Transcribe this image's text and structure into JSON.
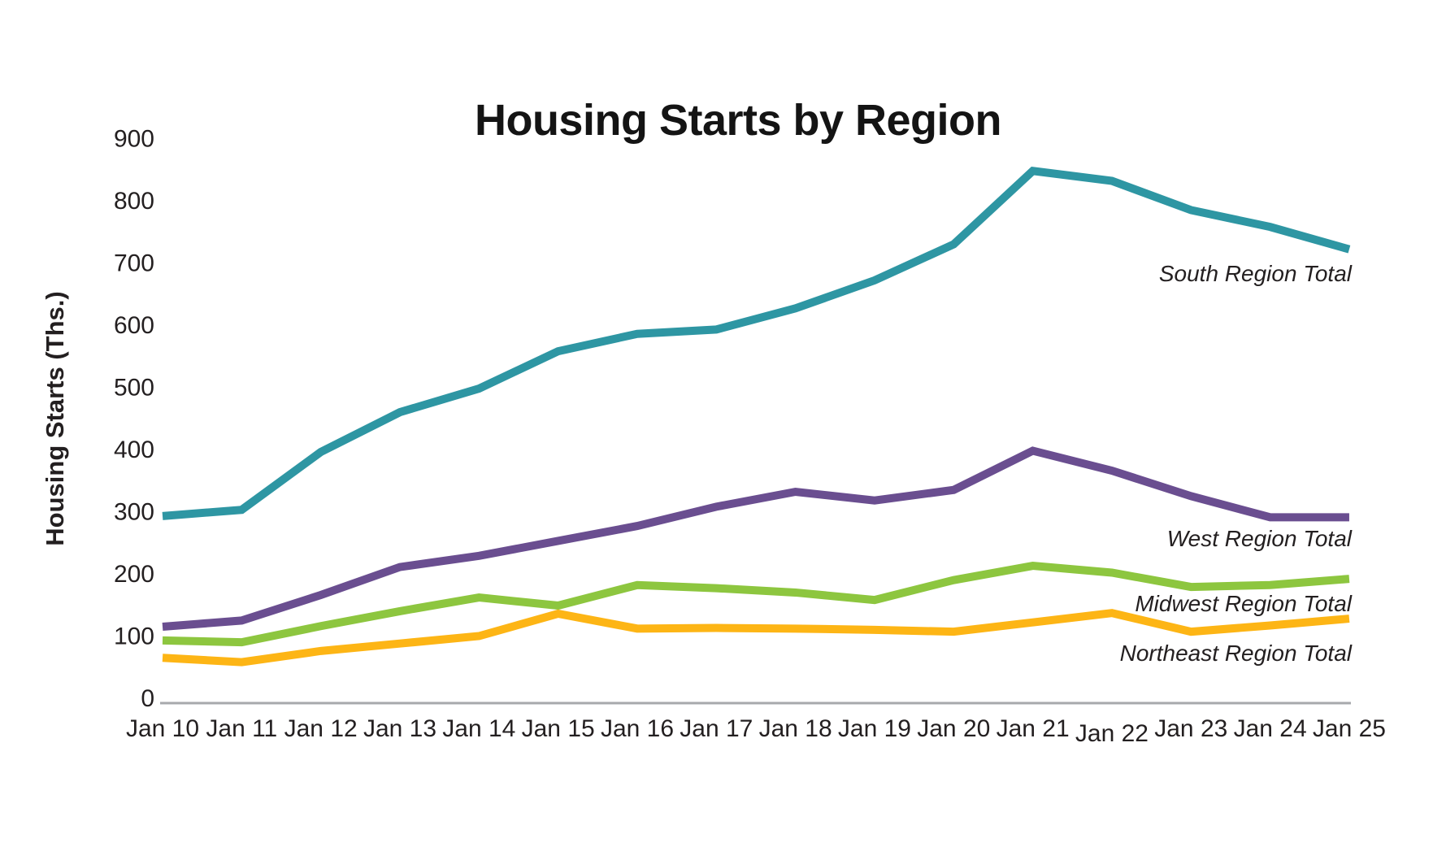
{
  "page": {
    "background": "#ffffff"
  },
  "chart_data": {
    "type": "line",
    "title": "Housing Starts by Region",
    "ylabel": "Housing Starts (Ths.)",
    "xlabel": "",
    "x_labels": [
      "Jan 10",
      "Jan 11",
      "Jan 12",
      "Jan 13",
      "Jan 14",
      "Jan 15",
      "Jan 16",
      "Jan 17",
      "Jan 18",
      "Jan 19",
      "Jan 20",
      "Jan 21",
      "Jan 22",
      "Jan 23",
      "Jan 24",
      "Jan 25"
    ],
    "y_ticks": [
      0,
      100,
      200,
      300,
      400,
      500,
      600,
      700,
      800,
      900
    ],
    "ylim": [
      0,
      900
    ],
    "grid": false,
    "legend_position": "inline-right-of-lines",
    "axis_color": "#A7A9AC",
    "text_color": "#231F20",
    "title_color": "#141414",
    "series": [
      {
        "name": "South Region Total",
        "color": "#2E96A3",
        "values": [
          293,
          303,
          396,
          460,
          498,
          558,
          586,
          593,
          627,
          672,
          730,
          848,
          832,
          785,
          758,
          722
        ]
      },
      {
        "name": "West Region Total",
        "color": "#6A4E90",
        "values": [
          115,
          125,
          166,
          211,
          229,
          253,
          277,
          308,
          332,
          318,
          335,
          398,
          366,
          325,
          291,
          291
        ]
      },
      {
        "name": "Midwest Region Total",
        "color": "#8DC63F",
        "values": [
          93,
          90,
          116,
          140,
          162,
          149,
          182,
          177,
          170,
          158,
          190,
          213,
          202,
          179,
          182,
          192
        ]
      },
      {
        "name": "Northeast Region Total",
        "color": "#FDB515",
        "values": [
          65,
          58,
          76,
          88,
          100,
          136,
          112,
          113,
          112,
          110,
          107,
          122,
          137,
          107,
          117,
          128
        ]
      }
    ]
  }
}
